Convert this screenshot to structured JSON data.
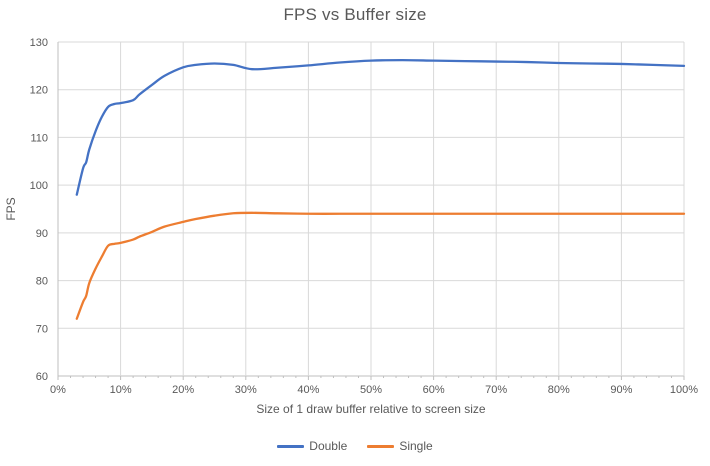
{
  "chart_data": {
    "type": "line",
    "title": "FPS vs Buffer size",
    "xlabel": "Size of 1 draw buffer relative to screen size",
    "ylabel": "FPS",
    "xlim": [
      0,
      100
    ],
    "ylim": [
      60,
      130
    ],
    "x_major_ticks": [
      0,
      10,
      20,
      30,
      40,
      50,
      60,
      70,
      80,
      90,
      100
    ],
    "x_tick_labels": [
      "0%",
      "10%",
      "20%",
      "30%",
      "40%",
      "50%",
      "60%",
      "70%",
      "80%",
      "90%",
      "100%"
    ],
    "x_minor_tick_step": 2,
    "y_ticks": [
      60,
      70,
      80,
      90,
      100,
      110,
      120,
      130
    ],
    "y_tick_labels": [
      "60",
      "70",
      "80",
      "90",
      "100",
      "110",
      "120",
      "130"
    ],
    "grid": true,
    "legend_position": "bottom",
    "line_smoothing": true,
    "x": [
      3,
      4,
      4.5,
      5,
      6,
      7,
      8,
      9,
      10,
      12,
      13,
      15,
      17,
      20,
      22,
      25,
      28,
      31,
      35,
      40,
      45,
      50,
      55,
      60,
      65,
      70,
      75,
      80,
      85,
      90,
      95,
      100
    ],
    "series": [
      {
        "name": "Double",
        "color": "#4472C4",
        "values": [
          98,
          103.5,
          104.8,
          107.5,
          111.3,
          114.3,
          116.4,
          117,
          117.2,
          117.8,
          119,
          121,
          122.9,
          124.7,
          125.2,
          125.5,
          125.2,
          124.3,
          124.6,
          125.1,
          125.7,
          126.1,
          126.2,
          126.1,
          126,
          125.9,
          125.8,
          125.6,
          125.5,
          125.4,
          125.2,
          125
        ]
      },
      {
        "name": "Single",
        "color": "#ED7D31",
        "values": [
          72,
          75.5,
          76.8,
          79.5,
          82.5,
          85,
          87.3,
          87.7,
          87.9,
          88.6,
          89.2,
          90.2,
          91.3,
          92.3,
          92.9,
          93.6,
          94.1,
          94.2,
          94.1,
          94,
          94,
          94,
          94,
          94,
          94,
          94,
          94,
          94,
          94,
          94,
          94,
          94
        ]
      }
    ],
    "colors": {
      "gridline": "#D9D9D9",
      "axis_line": "#BFBFBF",
      "text": "#595959",
      "background": "#FFFFFF"
    }
  }
}
